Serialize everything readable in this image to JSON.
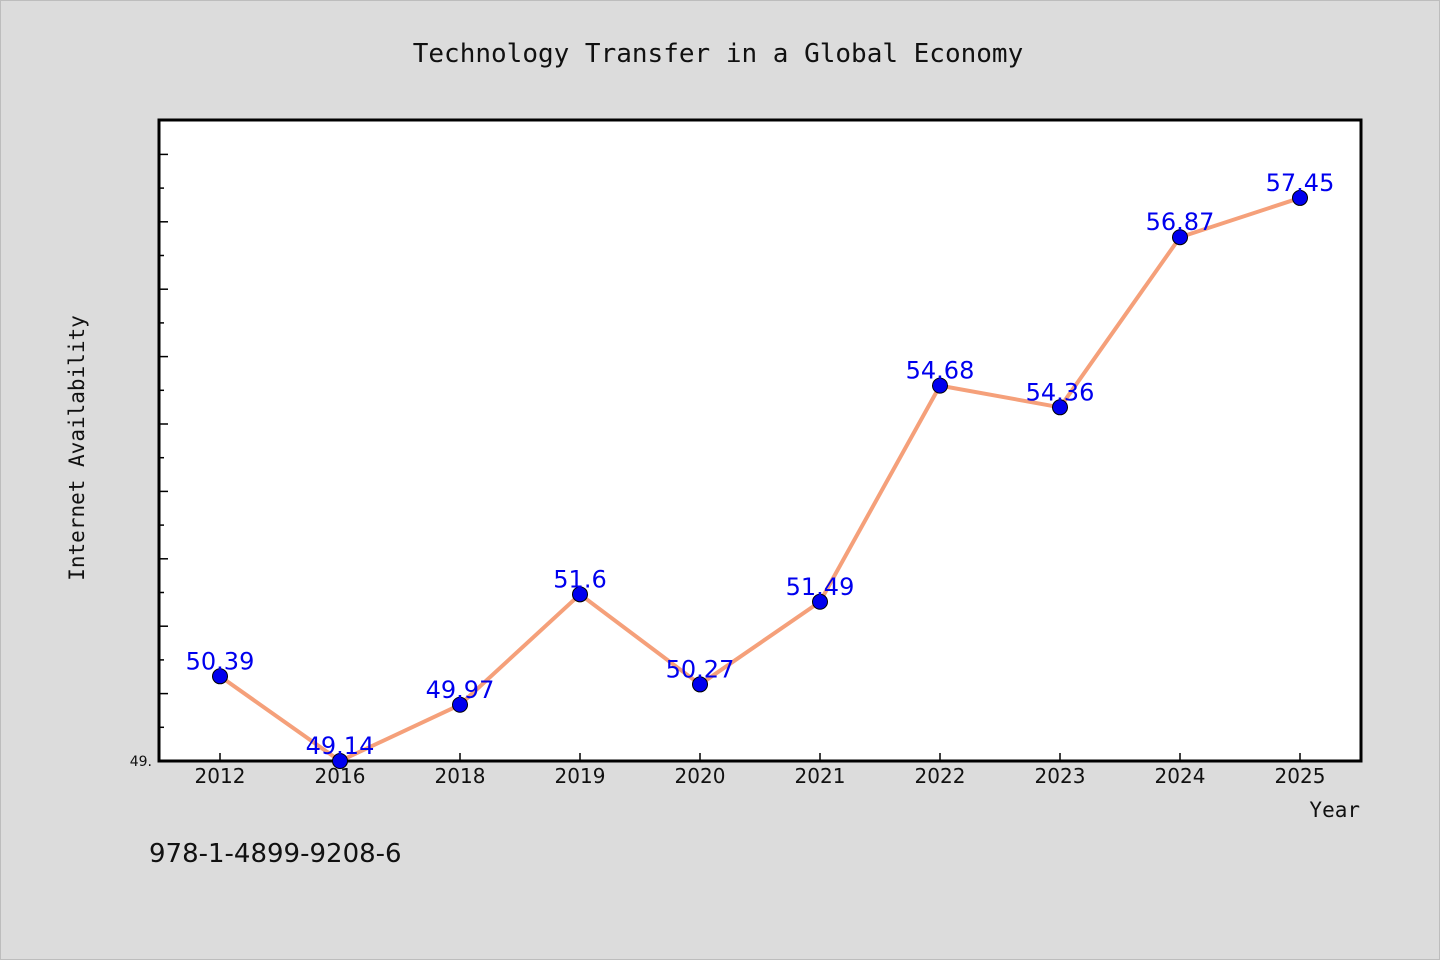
{
  "chart_data": {
    "type": "line",
    "title": "Technology Transfer in a Global Economy",
    "xlabel": "Year",
    "ylabel": "Internet Availability",
    "categories": [
      "2012",
      "2016",
      "2018",
      "2019",
      "2020",
      "2021",
      "2022",
      "2023",
      "2024",
      "2025"
    ],
    "series": [
      {
        "values": [
          50.39,
          49.14,
          49.97,
          51.6,
          50.27,
          51.49,
          54.68,
          54.36,
          56.87,
          57.45
        ]
      }
    ],
    "data_labels": [
      "50.39",
      "49.14",
      "49.97",
      "51.6",
      "50.27",
      "51.49",
      "54.68",
      "54.36",
      "56.87",
      "57.45"
    ],
    "ylim": [
      49.14,
      58.6
    ],
    "y_tick_label": "49.",
    "grid": false,
    "legend": "none",
    "colors": {
      "line": "#f5a07a",
      "marker": "#0000ee",
      "data_label": "#0000ee",
      "plot_bg": "#ffffff",
      "page_bg": "#dcdcdc"
    }
  },
  "footer_note": "978-1-4899-9208-6"
}
